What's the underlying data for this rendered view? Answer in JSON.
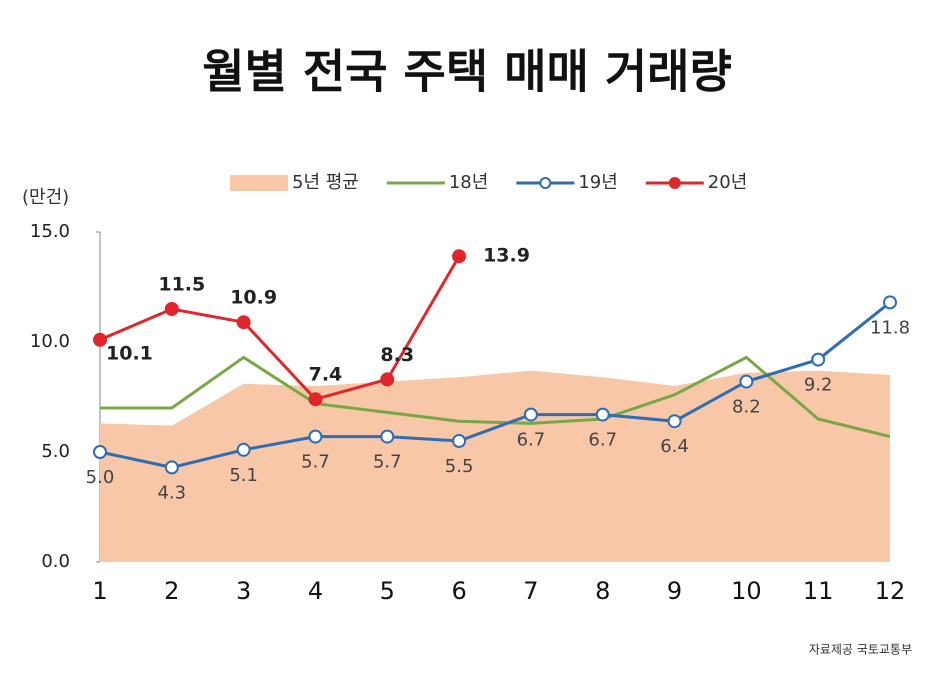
{
  "chart_data": {
    "type": "line",
    "title": "월별 전국 주택 매매 거래량",
    "y_label": "(만건)",
    "source": "자료제공 국토교통부",
    "categories": [
      "1",
      "2",
      "3",
      "4",
      "5",
      "6",
      "7",
      "8",
      "9",
      "10",
      "11",
      "12"
    ],
    "ylim": [
      0,
      15
    ],
    "yticks": [
      {
        "value": 0,
        "label": "0.0"
      },
      {
        "value": 5,
        "label": "5.0"
      },
      {
        "value": 10,
        "label": "10.0"
      },
      {
        "value": 15,
        "label": "15.0"
      }
    ],
    "series": [
      {
        "name": "5년 평균",
        "color": "#f8c7a8",
        "area": true,
        "marker": "none",
        "values": [
          6.3,
          6.2,
          8.1,
          8.0,
          8.2,
          8.4,
          8.7,
          8.4,
          8.0,
          8.6,
          8.7,
          8.5
        ]
      },
      {
        "name": "18년",
        "color": "#78a845",
        "area": false,
        "marker": "none",
        "values": [
          7.0,
          7.0,
          9.3,
          7.2,
          6.8,
          6.4,
          6.3,
          6.5,
          7.6,
          9.3,
          6.5,
          5.7
        ]
      },
      {
        "name": "19년",
        "color": "#2f6db3",
        "area": false,
        "marker": "hollow",
        "values": [
          5.0,
          4.3,
          5.1,
          5.7,
          5.7,
          5.5,
          6.7,
          6.7,
          6.4,
          8.2,
          9.2,
          11.8
        ],
        "value_labels": [
          "5.0",
          "4.3",
          "5.1",
          "5.7",
          "5.7",
          "5.5",
          "6.7",
          "6.7",
          "6.4",
          "8.2",
          "9.2",
          "11.8"
        ]
      },
      {
        "name": "20년",
        "color": "#e0262b",
        "area": false,
        "marker": "filled",
        "values": [
          10.1,
          11.5,
          10.9,
          7.4,
          8.3,
          13.9,
          null,
          null,
          null,
          null,
          null,
          null
        ]
      }
    ]
  }
}
